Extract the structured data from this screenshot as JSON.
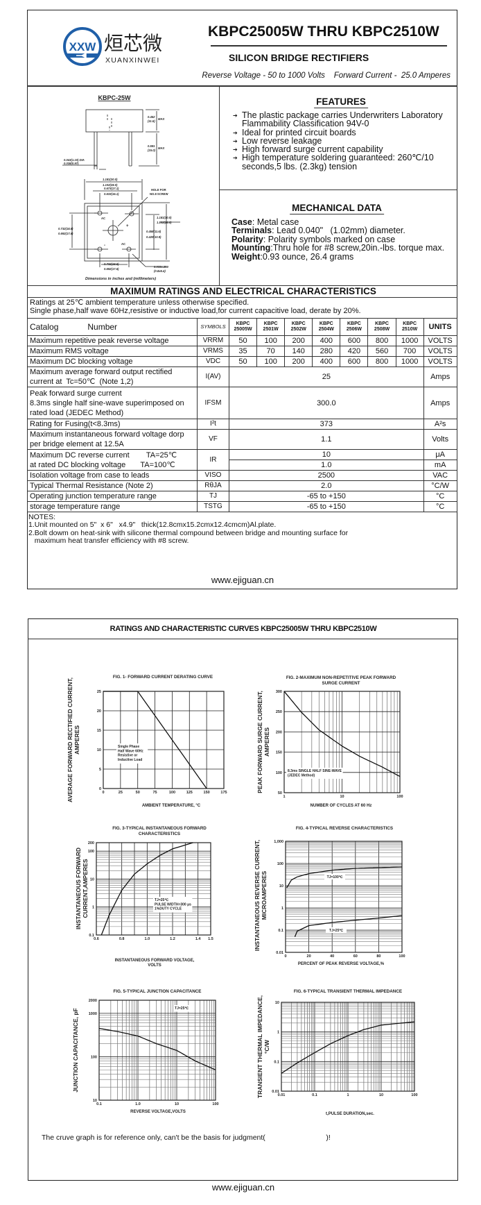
{
  "header": {
    "logo": {
      "mark": "XXW",
      "chinese_name": "烜芯微",
      "latin_name": "XUANXINWEI",
      "brand_color": "#1f5fa8"
    },
    "title": "KBPC25005W THRU KBPC2510W",
    "subtitle": "SILICON BRIDGE RECTIFIERS",
    "spec_line": "Reverse Voltage - 50 to 1000 Volts    Forward Current -  25.0 Amperes"
  },
  "package": {
    "name": "KBPC-25W",
    "dims": {
      "height": [
        "0.452",
        "(11.5)",
        "MAX"
      ],
      "lead_len": [
        "0.591",
        "(15.0)",
        "MAX"
      ],
      "lead_dia": [
        "0.043(1.10) DIA",
        "0.038(0.97)"
      ],
      "width": [
        "1.181(30.0)",
        "1.102(28.0)"
      ],
      "hole_pitch": [
        "0.673(17.1)",
        "0.633(16.1)"
      ],
      "hole_note": [
        "HOLE FOR",
        "NO.8 SCREW"
      ],
      "side": [
        "1.181(30.0)",
        "1.102(28.0)"
      ],
      "side_pitch": [
        "0.458(11.6)",
        "0.429(10.9)"
      ],
      "left_pitch": [
        "0.732(18.6)",
        "0.692(17.6)"
      ],
      "bottom_pitch": [
        "0.732(18.6)",
        "0.692(17.6)"
      ],
      "term": [
        "0.033x.250",
        "(0.8x6.4)"
      ],
      "pins": [
        "AC",
        "+",
        "-",
        "AC"
      ]
    },
    "caption": "Dimensions in inches and (millimeters)"
  },
  "features": {
    "heading": "FEATURES",
    "items": [
      "The plastic package carries Underwriters Laboratory Flammability Classification 94V-0",
      "Ideal for printed circuit boards",
      "Low reverse leakage",
      "High forward surge current capability",
      "High temperature soldering guaranteed: 260℃/10 seconds,5 lbs. (2.3kg) tension"
    ]
  },
  "mechanical": {
    "heading": "MECHANICAL DATA",
    "items": [
      {
        "label": "Case",
        "value": ": Metal case"
      },
      {
        "label": "Terminals",
        "value": ": Lead 0.040\"   (1.02mm) diameter."
      },
      {
        "label": "Polarity",
        "value": ": Polarity symbols marked on case"
      },
      {
        "label": "Mounting",
        "value": ":Thru hole for #8 screw,20in.-lbs. torque max."
      },
      {
        "label": "Weight",
        "value": ":0.93 ounce, 26.4 grams"
      }
    ]
  },
  "ratings": {
    "heading": "MAXIMUM RATINGS AND ELECTRICAL CHARACTERISTICS",
    "conditions": [
      "Ratings at 25℃ ambient temperature unless otherwise specified.",
      "Single phase,half wave 60Hz,resistive or inductive load,for current capacitive load, derate by 20%."
    ],
    "table": {
      "catalog_label": "Catalog",
      "number_label": "Number",
      "symbols_label": "SYMBOLS",
      "models": [
        [
          "KBPC",
          "25005W"
        ],
        [
          "KBPC",
          "2501W"
        ],
        [
          "KBPC",
          "2502W"
        ],
        [
          "KBPC",
          "2504W"
        ],
        [
          "KBPC",
          "2506W"
        ],
        [
          "KBPC",
          "2508W"
        ],
        [
          "KBPC",
          "2510W"
        ]
      ],
      "units_label": "UNITS",
      "rows": [
        {
          "param": [
            "Maximum repetitive peak reverse voltage"
          ],
          "symbol": "VRRM",
          "values": [
            "50",
            "100",
            "200",
            "400",
            "600",
            "800",
            "1000"
          ],
          "unit": "VOLTS"
        },
        {
          "param": [
            "Maximum RMS voltage"
          ],
          "symbol": "VRMS",
          "values": [
            "35",
            "70",
            "140",
            "280",
            "420",
            "560",
            "700"
          ],
          "unit": "VOLTS"
        },
        {
          "param": [
            "Maximum DC blocking voltage"
          ],
          "symbol": "VDC",
          "values": [
            "50",
            "100",
            "200",
            "400",
            "600",
            "800",
            "1000"
          ],
          "unit": "VOLTS"
        },
        {
          "param": [
            "Maximum average forward output rectified",
            "current at  Tc=50℃  (Note 1,2)"
          ],
          "symbol": "I(AV)",
          "value": "25",
          "unit": "Amps"
        },
        {
          "param": [
            "Peak forward surge current",
            "8.3ms single half sine-wave superimposed on",
            "rated load (JEDEC Method)"
          ],
          "symbol": "IFSM",
          "value": "300.0",
          "unit": "Amps"
        },
        {
          "param": [
            "Rating for Fusing(t<8.3ms)"
          ],
          "symbol": "I²t",
          "value": "373",
          "unit": "A²s"
        },
        {
          "param": [
            "Maximum instantaneous forward voltage dorp",
            "per bridge element at 12.5A"
          ],
          "symbol": "VF",
          "value": "1.1",
          "unit": "Volts"
        },
        {
          "param": [
            "Maximum DC reverse current        TA=25℃",
            "at rated DC blocking voltage       TA=100℃"
          ],
          "symbol": "IR",
          "value": "10",
          "value2": "1.0",
          "unit": "μA",
          "unit2": "mA"
        },
        {
          "param": [
            "Isolation voltage from case to leads"
          ],
          "symbol": "VISO",
          "value": "2500",
          "unit": "VAC"
        },
        {
          "param": [
            "Typical Thermal Resistance (Note 2)"
          ],
          "symbol": "RθJA",
          "value": "2.0",
          "unit": "°C/W"
        },
        {
          "param": [
            "Operating junction temperature range"
          ],
          "symbol": "TJ",
          "value": "-65 to +150",
          "unit": "°C"
        },
        {
          "param": [
            "storage temperature range"
          ],
          "symbol": "TSTG",
          "value": "-65 to +150",
          "unit": "°C"
        }
      ]
    },
    "notes": [
      "NOTES:",
      "1.Unit mounted on 5\"  x 6\"   x4.9\"   thick(12.8cmx15.2cmx12.4cmcm)Al.plate.",
      "2.Bolt dowm on heat-sink with silicone thermal compound between bridge and mounting surface for",
      "   maximum heat transfer efficiency with #8 screw."
    ]
  },
  "footer_url": "www.ejiguan.cn",
  "curves_page": {
    "heading": "RATINGS AND CHARACTERISTIC CURVES KBPC25005W THRU KBPC2510W",
    "disclaimer": "The cruve graph is for reference only, can't be the basis for judgment(                              )!"
  },
  "chart_data": [
    {
      "type": "line",
      "title": [
        "FIG. 1- FORWARD CURRENT DERATING CURVE"
      ],
      "xlabel": [
        "AMBIENT TEMPERATURE, °C"
      ],
      "ylabel": [
        "AVERAGE  FORWARD RECTIFIED CURRENT,",
        "AMPERES"
      ],
      "xscale": "linear",
      "yscale": "linear",
      "xlim": [
        0,
        175
      ],
      "ylim": [
        0,
        25
      ],
      "grid": true,
      "xgrid_step": 25,
      "ygrid_step": 5,
      "xticks": [
        0,
        25,
        50,
        75,
        100,
        125,
        150,
        175
      ],
      "xtick_labels": [
        "0",
        "25",
        "50",
        "75",
        "100",
        "125",
        "150",
        "175"
      ],
      "yticks": [
        0,
        5,
        10,
        15,
        20,
        25
      ],
      "ytick_labels": [
        "0",
        "5",
        "10",
        "15",
        "20",
        "25"
      ],
      "series": [
        {
          "x": [
            0,
            50,
            150
          ],
          "y": [
            25,
            25,
            0
          ]
        }
      ],
      "annotations": [
        [
          "Single Phase",
          "Half Wave 60Hz",
          "Resistive or",
          "Inductive Load"
        ]
      ]
    },
    {
      "type": "line",
      "title": [
        "FIG. 2-MAXIMUM NON-REPETITIVE PEAK FORWARD",
        "SURGE CURRENT"
      ],
      "xlabel": [
        "NUMBER OF CYCLES AT 60 Hz"
      ],
      "ylabel": [
        "PEAK  FORWARD SURGE CURRENT,",
        "AMPERES"
      ],
      "xscale": "log",
      "yscale": "linear",
      "xlim": [
        1,
        100
      ],
      "ylim": [
        50,
        300
      ],
      "grid": true,
      "ygrid_step": 50,
      "xticks": [
        1,
        10,
        100
      ],
      "xtick_labels": [
        "1",
        "10",
        "100"
      ],
      "yticks": [
        50,
        100,
        150,
        200,
        250,
        300
      ],
      "ytick_labels": [
        "50",
        "100",
        "150",
        "200",
        "250",
        "300"
      ],
      "series": [
        {
          "x": [
            1,
            2,
            4,
            10,
            20,
            50,
            100
          ],
          "y": [
            300,
            248,
            205,
            165,
            140,
            113,
            90
          ]
        }
      ],
      "annotations": [
        [
          "8.3ms SINGLE HALF SINE-WAVE",
          "(JEDEC Method)"
        ]
      ]
    },
    {
      "type": "line",
      "title": [
        "FIG. 3-TYPICAL INSTANTANEOUS FORWARD",
        "CHARACTERISTICS"
      ],
      "xlabel": [
        "INSTANTANEOUS FORWARD VOLTAGE,",
        "VOLTS"
      ],
      "ylabel": [
        "INSTANTANEOUS FORWARD",
        "CURRENT,AMPERES"
      ],
      "xscale": "linear",
      "yscale": "log",
      "xlim": [
        0.6,
        1.5
      ],
      "ylim": [
        0.1,
        200
      ],
      "grid": true,
      "xgrid_step": 0.1,
      "xticks": [
        0.6,
        0.8,
        1.0,
        1.2,
        1.4,
        1.5
      ],
      "xtick_labels": [
        "0.6",
        "0.8",
        "1.0",
        "1.2",
        "1.4",
        "1.5"
      ],
      "yticks": [
        0.1,
        1,
        10,
        100,
        200
      ],
      "ytick_labels": [
        "0.1",
        "1",
        "10",
        "100",
        "200"
      ],
      "series": [
        {
          "x": [
            0.64,
            0.7,
            0.8,
            0.9,
            1.0,
            1.1,
            1.2,
            1.36
          ],
          "y": [
            0.1,
            0.5,
            4,
            15,
            35,
            70,
            120,
            200
          ]
        }
      ],
      "annotations": [
        [
          "TJ=25℃",
          "PULSE WIDTH=300 μs",
          "1%DUTY CYCLE"
        ]
      ]
    },
    {
      "type": "line",
      "title": [
        "FIG. 4-TYPICAL REVERSE CHARACTERISTICS"
      ],
      "xlabel": [
        "PERCENT OF PEAK REVERSE VOLTAGE,%"
      ],
      "ylabel": [
        "INSTANTANEOUS REVERSE CURRENT,",
        "MICROAMPERES"
      ],
      "xscale": "linear",
      "yscale": "log",
      "xlim": [
        0,
        100
      ],
      "ylim": [
        0.01,
        1000
      ],
      "grid": true,
      "xgrid_step": 20,
      "xticks": [
        0,
        20,
        40,
        60,
        80,
        100
      ],
      "xtick_labels": [
        "0",
        "20",
        "40",
        "60",
        "80",
        "100"
      ],
      "yticks": [
        0.01,
        0.1,
        1,
        10,
        100,
        1000
      ],
      "ytick_labels": [
        "0.01",
        "0.1",
        "1",
        "10",
        "100",
        "1,000"
      ],
      "series": [
        {
          "name": "TJ=100℃",
          "x": [
            1,
            5,
            10,
            20,
            40,
            60,
            80,
            100
          ],
          "y": [
            8,
            18,
            25,
            35,
            50,
            60,
            65,
            70
          ]
        },
        {
          "name": "TJ=25℃",
          "x": [
            8,
            10,
            20,
            40,
            60,
            80,
            100
          ],
          "y": [
            0.05,
            0.09,
            0.16,
            0.22,
            0.28,
            0.35,
            0.45
          ]
        }
      ],
      "annotations": []
    },
    {
      "type": "line",
      "title": [
        "FIG. 5-TYPICAL JUNCTION CAPACITANCE"
      ],
      "xlabel": [
        "REVERSE VOLTAGE,VOLTS"
      ],
      "ylabel": [
        "JUNCTION CAPACITANCE, pF"
      ],
      "xscale": "log",
      "yscale": "log",
      "xlim": [
        0.1,
        100
      ],
      "ylim": [
        10,
        2000
      ],
      "grid": true,
      "xticks": [
        0.1,
        1,
        10,
        100
      ],
      "xtick_labels": [
        "0.1",
        "1.0",
        "10",
        "100"
      ],
      "yticks": [
        10,
        100,
        1000,
        2000
      ],
      "ytick_labels": [
        "10",
        "100",
        "1000",
        "2000"
      ],
      "series": [
        {
          "x": [
            0.1,
            0.3,
            1,
            3,
            10,
            30,
            100
          ],
          "y": [
            450,
            380,
            300,
            200,
            140,
            80,
            50
          ]
        }
      ],
      "annotations": [
        [
          "TJ=25℃"
        ]
      ]
    },
    {
      "type": "line",
      "title": [
        "FIG. 6-TYPICAL TRANSIENT THERMAL IMPEDANCE"
      ],
      "xlabel": [
        "t,PULSE DURATION,sec."
      ],
      "ylabel": [
        "TRANSIENT THERMAL IMPEDANCE,",
        "°C/W"
      ],
      "xscale": "log",
      "yscale": "log",
      "xlim": [
        0.01,
        100
      ],
      "ylim": [
        0.01,
        10
      ],
      "grid": true,
      "xticks": [
        0.01,
        0.1,
        1,
        10,
        100
      ],
      "xtick_labels": [
        "0.01",
        "0.1",
        "1",
        "10",
        "100"
      ],
      "yticks": [
        0.01,
        0.1,
        1,
        10
      ],
      "ytick_labels": [
        "0.01",
        "0.1",
        "1",
        "10"
      ],
      "series": [
        {
          "x": [
            0.01,
            0.03,
            0.1,
            0.3,
            1,
            3,
            10,
            100
          ],
          "y": [
            0.04,
            0.09,
            0.2,
            0.4,
            0.75,
            1.2,
            1.7,
            2.2
          ]
        }
      ],
      "annotations": []
    }
  ]
}
